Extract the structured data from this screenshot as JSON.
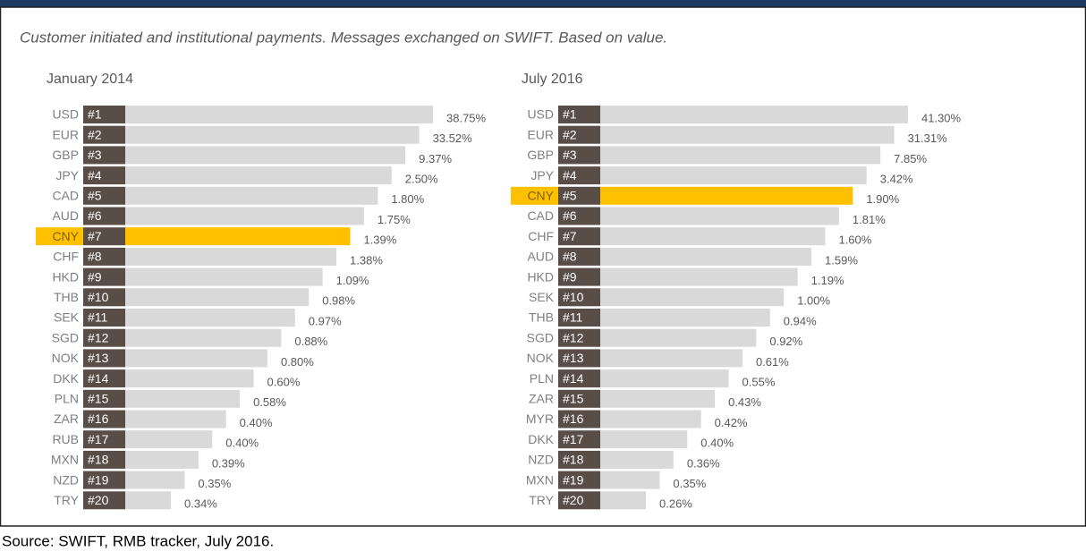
{
  "subtitle": "Customer initiated and institutional payments. Messages exchanged on SWIFT. Based on value.",
  "source": "Source: SWIFT, RMB tracker, July 2016.",
  "chart_data": [
    {
      "type": "bar",
      "title": "January 2014",
      "categories": [
        "USD",
        "EUR",
        "GBP",
        "JPY",
        "CAD",
        "AUD",
        "CNY",
        "CHF",
        "HKD",
        "THB",
        "SEK",
        "SGD",
        "NOK",
        "DKK",
        "PLN",
        "ZAR",
        "RUB",
        "MXN",
        "NZD",
        "TRY"
      ],
      "ranks": [
        "#1",
        "#2",
        "#3",
        "#4",
        "#5",
        "#6",
        "#7",
        "#8",
        "#9",
        "#10",
        "#11",
        "#12",
        "#13",
        "#14",
        "#15",
        "#16",
        "#17",
        "#18",
        "#19",
        "#20"
      ],
      "values": [
        38.75,
        33.52,
        9.37,
        2.5,
        1.8,
        1.75,
        1.39,
        1.38,
        1.09,
        0.98,
        0.97,
        0.88,
        0.8,
        0.6,
        0.58,
        0.4,
        0.4,
        0.39,
        0.35,
        0.34
      ],
      "value_labels": [
        "38.75%",
        "33.52%",
        "9.37%",
        "2.50%",
        "1.80%",
        "1.75%",
        "1.39%",
        "1.38%",
        "1.09%",
        "0.98%",
        "0.97%",
        "0.88%",
        "0.80%",
        "0.60%",
        "0.58%",
        "0.40%",
        "0.40%",
        "0.39%",
        "0.35%",
        "0.34%"
      ],
      "colors": [
        "#d9d9d9",
        "#d9d9d9",
        "#d9d9d9",
        "#d9d9d9",
        "#d9d9d9",
        "#d9d9d9",
        "#ffc000",
        "#d9d9d9",
        "#d9d9d9",
        "#d9d9d9",
        "#d9d9d9",
        "#d9d9d9",
        "#d9d9d9",
        "#d9d9d9",
        "#d9d9d9",
        "#d9d9d9",
        "#d9d9d9",
        "#d9d9d9",
        "#d9d9d9",
        "#d9d9d9"
      ]
    },
    {
      "type": "bar",
      "title": "July 2016",
      "categories": [
        "USD",
        "EUR",
        "GBP",
        "JPY",
        "CNY",
        "CAD",
        "CHF",
        "AUD",
        "HKD",
        "SEK",
        "THB",
        "SGD",
        "NOK",
        "PLN",
        "ZAR",
        "MYR",
        "DKK",
        "NZD",
        "MXN",
        "TRY"
      ],
      "ranks": [
        "#1",
        "#2",
        "#3",
        "#4",
        "#5",
        "#6",
        "#7",
        "#8",
        "#9",
        "#10",
        "#11",
        "#12",
        "#13",
        "#14",
        "#15",
        "#16",
        "#17",
        "#18",
        "#19",
        "#20"
      ],
      "values": [
        41.3,
        31.31,
        7.85,
        3.42,
        1.9,
        1.81,
        1.6,
        1.59,
        1.19,
        1.0,
        0.94,
        0.92,
        0.61,
        0.55,
        0.43,
        0.42,
        0.4,
        0.36,
        0.35,
        0.26
      ],
      "value_labels": [
        "41.30%",
        "31.31%",
        "7.85%",
        "3.42%",
        "1.90%",
        "1.81%",
        "1.60%",
        "1.59%",
        "1.19%",
        "1.00%",
        "0.94%",
        "0.92%",
        "0.61%",
        "0.55%",
        "0.43%",
        "0.42%",
        "0.40%",
        "0.36%",
        "0.35%",
        "0.26%"
      ],
      "colors": [
        "#d9d9d9",
        "#d9d9d9",
        "#d9d9d9",
        "#d9d9d9",
        "#ffc000",
        "#d9d9d9",
        "#d9d9d9",
        "#d9d9d9",
        "#d9d9d9",
        "#d9d9d9",
        "#d9d9d9",
        "#d9d9d9",
        "#d9d9d9",
        "#d9d9d9",
        "#d9d9d9",
        "#d9d9d9",
        "#d9d9d9",
        "#d9d9d9",
        "#d9d9d9",
        "#d9d9d9"
      ]
    }
  ]
}
